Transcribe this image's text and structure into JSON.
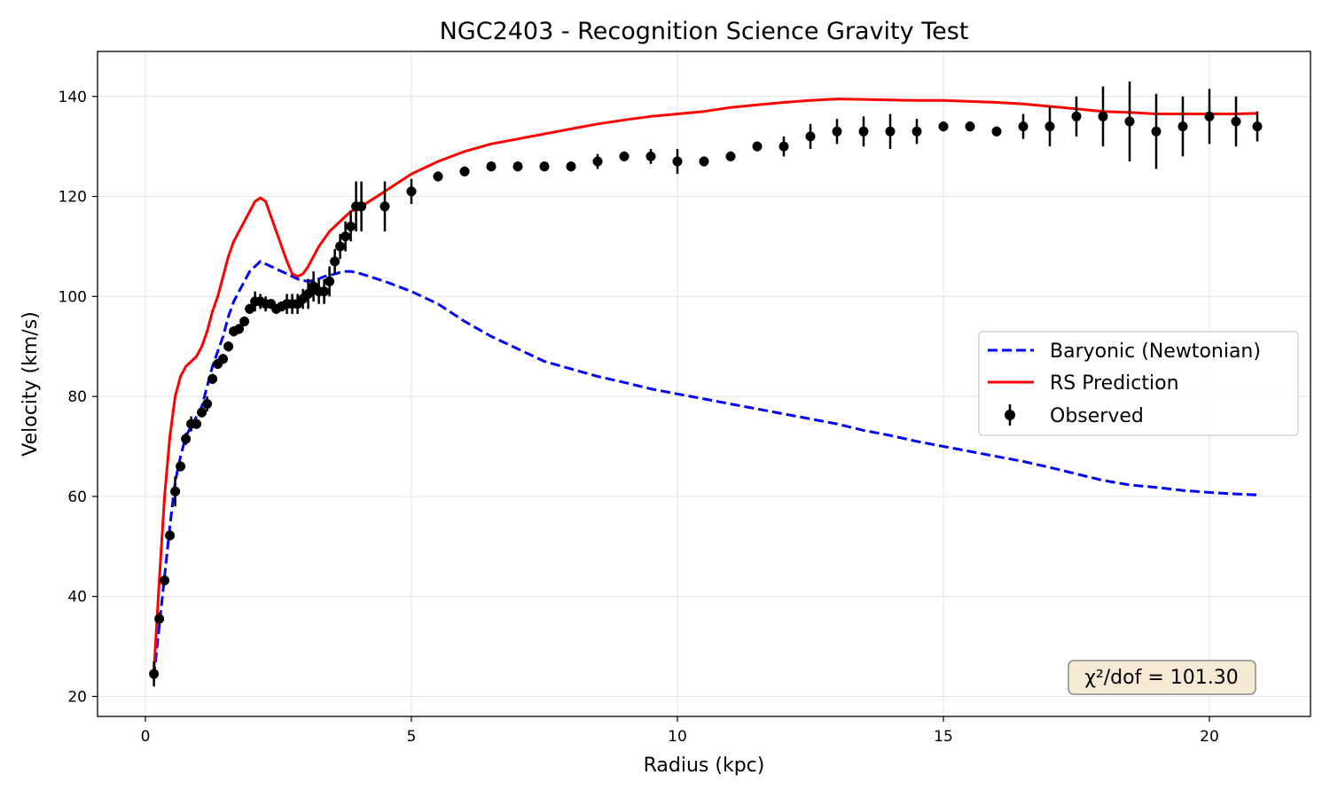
{
  "chart_data": {
    "type": "line",
    "title": "NGC2403 - Recognition Science Gravity Test",
    "xlabel": "Radius (kpc)",
    "ylabel": "Velocity (km/s)",
    "xlim": [
      -0.9,
      21.9
    ],
    "ylim": [
      16,
      149
    ],
    "xticks": [
      0,
      5,
      10,
      15,
      20
    ],
    "yticks": [
      20,
      40,
      60,
      80,
      100,
      120,
      140
    ],
    "grid": true,
    "legend_position": "center-right",
    "annotation": "χ²/dof = 101.30",
    "annotation_position": "bottom-right",
    "colors": {
      "baryonic": "#0000ff",
      "rs": "#ff0000",
      "observed": "#000000",
      "grid": "#e3e3e3",
      "annotation_bg": "#f7ead4",
      "annotation_border": "#8a8a8a"
    },
    "series": [
      {
        "name": "Baryonic (Newtonian)",
        "style": "dashed",
        "x": [
          0.16,
          0.26,
          0.36,
          0.46,
          0.56,
          0.66,
          0.76,
          0.86,
          0.96,
          1.06,
          1.16,
          1.26,
          1.36,
          1.46,
          1.56,
          1.66,
          1.76,
          1.86,
          1.96,
          2.06,
          2.16,
          2.26,
          2.36,
          2.46,
          2.56,
          2.66,
          2.76,
          2.86,
          2.96,
          3.06,
          3.16,
          3.26,
          3.36,
          3.46,
          3.56,
          3.66,
          3.76,
          3.86,
          3.96,
          4.06,
          4.5,
          5.0,
          5.5,
          6.0,
          6.5,
          7.0,
          7.5,
          8.0,
          8.5,
          9.0,
          9.5,
          10.0,
          10.5,
          11.0,
          11.5,
          12.0,
          12.5,
          13.0,
          13.5,
          14.0,
          14.5,
          15.0,
          15.5,
          16.0,
          16.5,
          17.0,
          17.5,
          18.0,
          18.5,
          19.0,
          19.5,
          20.0,
          20.5,
          20.9
        ],
        "values": [
          24,
          34,
          44,
          54,
          63,
          68,
          72,
          74,
          76,
          78,
          82,
          86,
          89,
          92,
          96,
          99,
          101,
          103,
          105,
          106,
          107,
          106.5,
          106,
          105.5,
          105,
          104.5,
          104,
          103.5,
          103.2,
          103,
          103.2,
          103.5,
          104,
          104.2,
          104.5,
          104.8,
          105,
          105,
          104.8,
          104.5,
          103,
          101,
          98.5,
          95,
          92,
          89.5,
          87,
          85.5,
          84,
          82.8,
          81.5,
          80.5,
          79.5,
          78.5,
          77.5,
          76.5,
          75.5,
          74.5,
          73.2,
          72.2,
          71,
          70,
          69,
          68,
          67,
          65.8,
          64.5,
          63.2,
          62.3,
          61.8,
          61.2,
          60.8,
          60.5,
          60.3
        ]
      },
      {
        "name": "RS Prediction",
        "style": "solid",
        "x": [
          0.16,
          0.26,
          0.36,
          0.46,
          0.56,
          0.66,
          0.76,
          0.86,
          0.96,
          1.06,
          1.16,
          1.26,
          1.36,
          1.46,
          1.56,
          1.66,
          1.76,
          1.86,
          1.96,
          2.06,
          2.16,
          2.26,
          2.36,
          2.46,
          2.56,
          2.66,
          2.76,
          2.86,
          2.96,
          3.06,
          3.16,
          3.26,
          3.36,
          3.46,
          3.56,
          3.66,
          3.76,
          3.86,
          3.96,
          4.06,
          4.5,
          5.0,
          5.5,
          6.0,
          6.5,
          7.0,
          7.5,
          8.0,
          8.5,
          9.0,
          9.5,
          10.0,
          10.5,
          11.0,
          11.5,
          12.0,
          12.5,
          13.0,
          13.5,
          14.0,
          14.5,
          15.0,
          15.5,
          16.0,
          16.5,
          17.0,
          17.5,
          18.0,
          18.5,
          19.0,
          19.5,
          20.0,
          20.5,
          20.9
        ],
        "values": [
          25,
          43,
          60,
          72,
          80,
          84,
          86,
          87,
          88,
          90,
          93,
          97,
          100,
          104,
          108,
          111,
          113,
          115,
          117,
          119,
          119.7,
          119,
          116,
          113,
          110,
          107,
          104.5,
          104,
          104.5,
          106,
          108,
          110,
          111.5,
          113,
          114,
          115,
          116,
          117,
          117.5,
          118,
          121,
          124.5,
          127,
          129,
          130.5,
          131.5,
          132.5,
          133.5,
          134.5,
          135.3,
          136,
          136.5,
          137,
          137.8,
          138.3,
          138.8,
          139.2,
          139.5,
          139.4,
          139.3,
          139.2,
          139.2,
          139,
          138.8,
          138.5,
          138,
          137.5,
          137,
          136.8,
          136.5,
          136.5,
          136.5,
          136.5,
          136.6
        ]
      },
      {
        "name": "Observed",
        "style": "errorbar",
        "x": [
          0.16,
          0.26,
          0.36,
          0.46,
          0.56,
          0.66,
          0.76,
          0.86,
          0.96,
          1.06,
          1.16,
          1.26,
          1.36,
          1.46,
          1.56,
          1.66,
          1.76,
          1.86,
          1.96,
          2.06,
          2.16,
          2.26,
          2.36,
          2.46,
          2.56,
          2.66,
          2.76,
          2.86,
          2.96,
          3.06,
          3.16,
          3.26,
          3.36,
          3.46,
          3.56,
          3.66,
          3.76,
          3.86,
          3.96,
          4.06,
          4.5,
          5.0,
          5.5,
          6.0,
          6.5,
          7.0,
          7.5,
          8.0,
          8.5,
          9.0,
          9.5,
          10.0,
          10.5,
          11.0,
          11.5,
          12.0,
          12.5,
          13.0,
          13.5,
          14.0,
          14.5,
          15.0,
          15.5,
          16.0,
          16.5,
          17.0,
          17.5,
          18.0,
          18.5,
          19.0,
          19.5,
          20.0,
          20.5,
          20.9
        ],
        "values": [
          24.5,
          35.5,
          43.2,
          52.2,
          61,
          66,
          71.5,
          74.5,
          74.5,
          76.8,
          78.5,
          83.5,
          86.5,
          87.5,
          90,
          93,
          93.5,
          95,
          97.5,
          99,
          99,
          98.5,
          98.5,
          97.5,
          98,
          98.5,
          98.5,
          98.5,
          99.5,
          100.5,
          102,
          101,
          101,
          103,
          107,
          110,
          112,
          114,
          118,
          118,
          118,
          121,
          124,
          125,
          126,
          126,
          126,
          126,
          127,
          128,
          128,
          127,
          127,
          128,
          130,
          130,
          132,
          133,
          133,
          133,
          133,
          134,
          134,
          133,
          134,
          134,
          136,
          136,
          135,
          133,
          134,
          136,
          135,
          134
        ],
        "errors": [
          2.5,
          1.3,
          1,
          1,
          3,
          1,
          1.2,
          1.5,
          1,
          1,
          1.5,
          1,
          1,
          1,
          1,
          1,
          1,
          1,
          1,
          2,
          1.5,
          1.5,
          1,
          1,
          1,
          2,
          2,
          2,
          2,
          3,
          3,
          2.5,
          2.5,
          3,
          2.5,
          2.5,
          3,
          3,
          5,
          5,
          5,
          2.5,
          1,
          1,
          1,
          1,
          1,
          1,
          1.5,
          1,
          1.5,
          2.5,
          1,
          1,
          1,
          2,
          2.5,
          2.5,
          3,
          3.5,
          2.5,
          1,
          1,
          1,
          2.5,
          4,
          4,
          6,
          8,
          7.5,
          6,
          5.5,
          5,
          3
        ]
      }
    ]
  }
}
